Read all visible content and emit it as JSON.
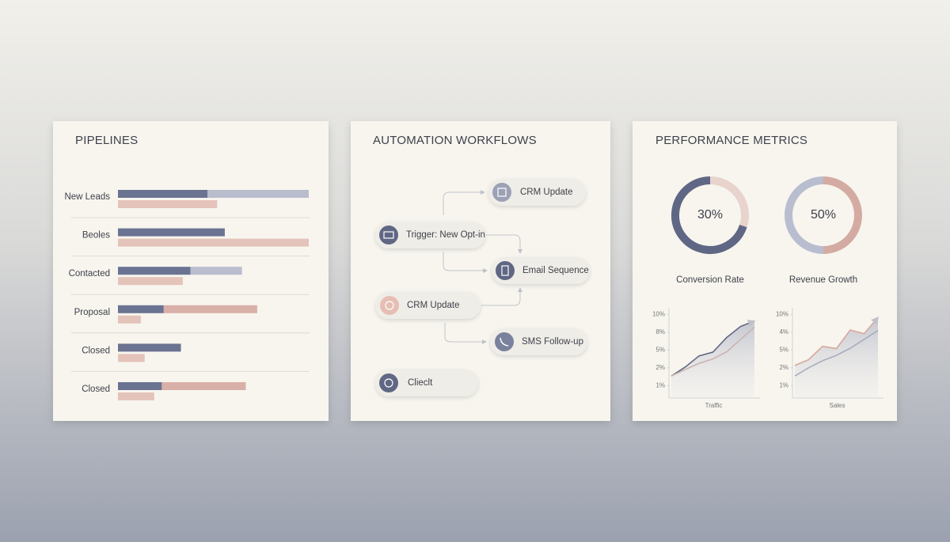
{
  "pipelines": {
    "title": "PIPELINES",
    "xlim": [
      0,
      100
    ],
    "rows": [
      "New Leads",
      "Beoles",
      "Contacted",
      "Proposal",
      "Closed",
      "Closed"
    ],
    "series": [
      {
        "color": "#6b7392",
        "lane": 0,
        "values": [
          47,
          56,
          38,
          24,
          33,
          23
        ]
      },
      {
        "color": "#b9bdcd",
        "lane": 0,
        "values": [
          53,
          null,
          27,
          null,
          null,
          null
        ]
      },
      {
        "color": "#d9b0a8",
        "lane": 0,
        "values": [
          null,
          null,
          null,
          49,
          null,
          44
        ]
      },
      {
        "color": "#e4c3bb",
        "lane": 1,
        "values": [
          52,
          100,
          34,
          12,
          14,
          19
        ]
      }
    ]
  },
  "workflow": {
    "title": "AUTOMATION WORKFLOWS",
    "nodes": [
      {
        "label": "CRM Update"
      },
      {
        "label": "Trigger: New Opt-in"
      },
      {
        "label": "Email Sequence"
      },
      {
        "label": "CRM Update"
      },
      {
        "label": "SMS Follow-up"
      },
      {
        "label": "Clieclt"
      }
    ]
  },
  "metrics": {
    "title": "PERFORMANCE METRICS",
    "donuts": [
      {
        "label": "Conversion Rate",
        "value": 30,
        "value_label": "30%",
        "color": "#e8d3cd",
        "rest_color": "#5f6784"
      },
      {
        "label": "Revenue Growth",
        "value": 50,
        "value_label": "50%",
        "color": "#d4aba3",
        "rest_color": "#b9bdd0"
      }
    ],
    "charts": [
      {
        "type": "line",
        "xlabel": "Traffic",
        "ylim": [
          -0.7,
          4.2
        ],
        "area": true,
        "yticks": [
          {
            "value": 0,
            "label": "1%"
          },
          {
            "value": 1,
            "label": "2%"
          },
          {
            "value": 2,
            "label": "5%"
          },
          {
            "value": 3,
            "label": "8%"
          },
          {
            "value": 4,
            "label": "10%"
          }
        ],
        "series": [
          {
            "color": "#5f6784",
            "values": [
              0.54,
              1.04,
              1.67,
              1.88,
              2.71,
              3.33,
              3.63
            ]
          },
          {
            "color": "#c9b3b0",
            "values": [
              0.54,
              0.9,
              1.25,
              1.5,
              1.9,
              2.6,
              3.3
            ]
          }
        ]
      },
      {
        "type": "line",
        "xlabel": "Sales",
        "ylim": [
          -0.7,
          4.2
        ],
        "area": true,
        "yticks": [
          {
            "value": 0,
            "label": "1%"
          },
          {
            "value": 1,
            "label": "2%"
          },
          {
            "value": 2,
            "label": "5%"
          },
          {
            "value": 3,
            "label": "4%"
          },
          {
            "value": 4,
            "label": "10%"
          }
        ],
        "series": [
          {
            "color": "#d9a79d",
            "values": [
              1.13,
              1.46,
              2.21,
              2.08,
              3.13,
              2.92,
              3.83
            ]
          },
          {
            "color": "#a9adbd",
            "values": [
              0.54,
              1.0,
              1.4,
              1.7,
              2.1,
              2.6,
              3.1
            ]
          }
        ]
      }
    ]
  }
}
